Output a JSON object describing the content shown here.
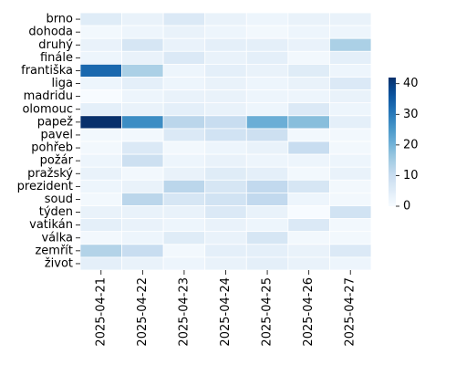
{
  "chart_data": {
    "type": "heatmap",
    "title": "",
    "xlabel": "",
    "ylabel": "",
    "x_categories": [
      "2025-04-21",
      "2025-04-22",
      "2025-04-23",
      "2025-04-24",
      "2025-04-25",
      "2025-04-26",
      "2025-04-27"
    ],
    "y_categories": [
      "brno",
      "dohoda",
      "druhý",
      "finále",
      "františka",
      "liga",
      "madridu",
      "olomouc",
      "papež",
      "pavel",
      "pohřeb",
      "požár",
      "pražský",
      "prezident",
      "soud",
      "týden",
      "vatikán",
      "válka",
      "zemřít",
      "život"
    ],
    "values": [
      [
        5,
        3,
        6,
        3,
        2,
        3,
        3
      ],
      [
        1,
        2,
        3,
        2,
        1,
        2,
        2
      ],
      [
        3,
        7,
        3,
        4,
        4,
        3,
        14
      ],
      [
        2,
        3,
        6,
        3,
        4,
        1,
        4
      ],
      [
        33,
        14,
        2,
        4,
        3,
        5,
        2
      ],
      [
        2,
        4,
        2,
        3,
        2,
        3,
        6
      ],
      [
        0,
        2,
        3,
        3,
        2,
        2,
        3
      ],
      [
        4,
        3,
        4,
        3,
        2,
        6,
        2
      ],
      [
        42,
        27,
        12,
        10,
        21,
        18,
        4
      ],
      [
        1,
        1,
        6,
        8,
        9,
        1,
        1
      ],
      [
        1,
        6,
        1,
        2,
        3,
        10,
        1
      ],
      [
        2,
        9,
        2,
        3,
        2,
        2,
        2
      ],
      [
        3,
        1,
        3,
        5,
        4,
        1,
        3
      ],
      [
        2,
        3,
        12,
        7,
        11,
        7,
        1
      ],
      [
        1,
        12,
        7,
        8,
        11,
        2,
        1
      ],
      [
        3,
        3,
        3,
        6,
        3,
        0,
        8
      ],
      [
        4,
        3,
        2,
        3,
        2,
        6,
        1
      ],
      [
        1,
        2,
        5,
        3,
        7,
        1,
        1
      ],
      [
        13,
        10,
        1,
        4,
        4,
        3,
        6
      ],
      [
        4,
        3,
        2,
        3,
        4,
        3,
        2
      ]
    ],
    "colorbar": {
      "min": 0,
      "max": 42,
      "ticks": [
        0,
        10,
        20,
        30,
        40
      ]
    },
    "colormap": "Blues",
    "colors": {
      "low": "#f7fbff",
      "high": "#08306b",
      "cell_border": "#ffffff"
    },
    "legend": "right"
  }
}
